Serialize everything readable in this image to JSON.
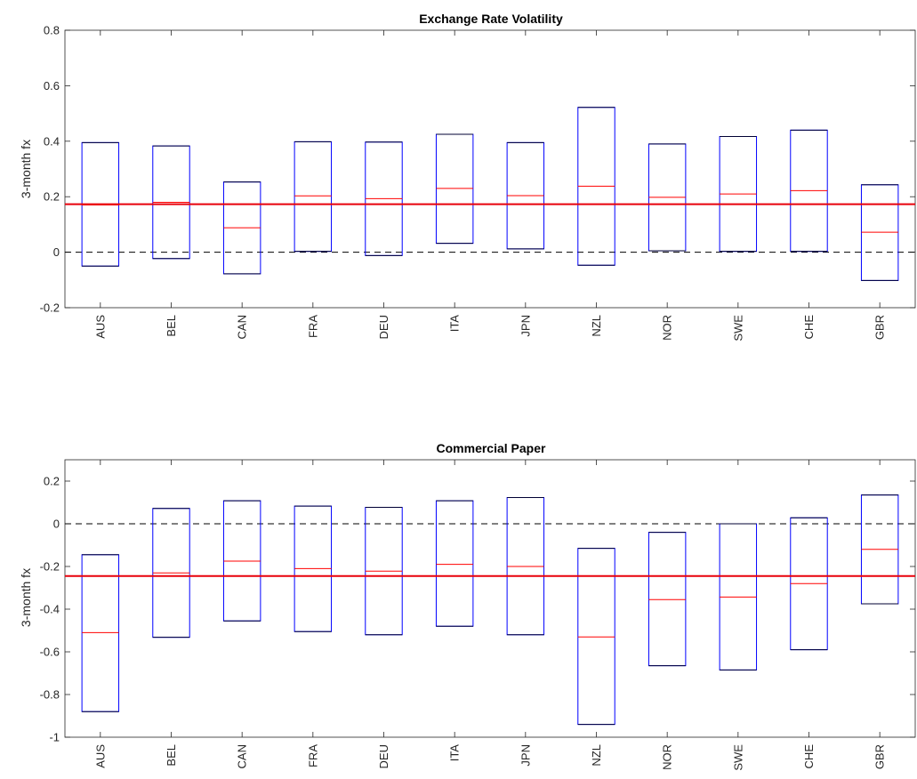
{
  "chart_data": [
    {
      "type": "box",
      "title": "Exchange Rate Volatility",
      "ylabel": "3-month fx",
      "xlabel": "",
      "ylim": [
        -0.2,
        0.8
      ],
      "yticks": [
        -0.2,
        0,
        0.2,
        0.4,
        0.6,
        0.8
      ],
      "ytick_labels": [
        "-0.2",
        "0",
        "0.2",
        "0.4",
        "0.6",
        "0.8"
      ],
      "categories": [
        "AUS",
        "BEL",
        "CAN",
        "FRA",
        "DEU",
        "ITA",
        "JPN",
        "NZL",
        "NOR",
        "SWE",
        "CHE",
        "GBR"
      ],
      "boxes": [
        {
          "low": -0.05,
          "median": 0.17,
          "high": 0.395
        },
        {
          "low": -0.023,
          "median": 0.18,
          "high": 0.383
        },
        {
          "low": -0.078,
          "median": 0.088,
          "high": 0.253
        },
        {
          "low": 0.003,
          "median": 0.203,
          "high": 0.398
        },
        {
          "low": -0.012,
          "median": 0.193,
          "high": 0.397
        },
        {
          "low": 0.032,
          "median": 0.23,
          "high": 0.425
        },
        {
          "low": 0.012,
          "median": 0.204,
          "high": 0.395
        },
        {
          "low": -0.047,
          "median": 0.238,
          "high": 0.522
        },
        {
          "low": 0.005,
          "median": 0.198,
          "high": 0.39
        },
        {
          "low": 0.003,
          "median": 0.21,
          "high": 0.417
        },
        {
          "low": 0.003,
          "median": 0.222,
          "high": 0.44
        },
        {
          "low": -0.102,
          "median": 0.072,
          "high": 0.243
        }
      ],
      "reference_line": 0.173,
      "zero_line": 0,
      "colors": {
        "box": "#0000ff",
        "median": "#ff0000",
        "reference": "#e8000b",
        "zero": "#000000"
      }
    },
    {
      "type": "box",
      "title": "Commercial Paper",
      "ylabel": "3-month fx",
      "xlabel": "",
      "ylim": [
        -1.0,
        0.3
      ],
      "yticks": [
        -1,
        -0.8,
        -0.6,
        -0.4,
        -0.2,
        0,
        0.2
      ],
      "ytick_labels": [
        "-1",
        "-0.8",
        "-0.6",
        "-0.4",
        "-0.2",
        "0",
        "0.2"
      ],
      "categories": [
        "AUS",
        "BEL",
        "CAN",
        "FRA",
        "DEU",
        "ITA",
        "JPN",
        "NZL",
        "NOR",
        "SWE",
        "CHE",
        "GBR"
      ],
      "boxes": [
        {
          "low": -0.88,
          "median": -0.51,
          "high": -0.145
        },
        {
          "low": -0.532,
          "median": -0.23,
          "high": 0.072
        },
        {
          "low": -0.455,
          "median": -0.175,
          "high": 0.108
        },
        {
          "low": -0.505,
          "median": -0.21,
          "high": 0.083
        },
        {
          "low": -0.52,
          "median": -0.222,
          "high": 0.077
        },
        {
          "low": -0.48,
          "median": -0.19,
          "high": 0.108
        },
        {
          "low": -0.52,
          "median": -0.2,
          "high": 0.123
        },
        {
          "low": -0.94,
          "median": -0.53,
          "high": -0.115
        },
        {
          "low": -0.665,
          "median": -0.355,
          "high": -0.04
        },
        {
          "low": -0.685,
          "median": -0.343,
          "high": 0.0
        },
        {
          "low": -0.59,
          "median": -0.28,
          "high": 0.028
        },
        {
          "low": -0.375,
          "median": -0.12,
          "high": 0.135
        }
      ],
      "reference_line": -0.245,
      "zero_line": 0,
      "colors": {
        "box": "#0000ff",
        "median": "#ff0000",
        "reference": "#e8000b",
        "zero": "#000000"
      }
    }
  ]
}
